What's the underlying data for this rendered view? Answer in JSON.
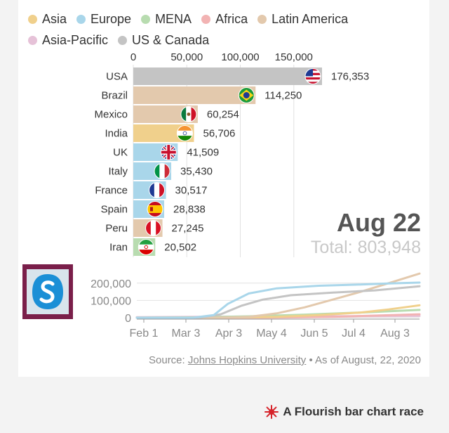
{
  "legend": [
    {
      "label": "Asia",
      "color": "#f0d08c"
    },
    {
      "label": "Europe",
      "color": "#a9d6ea"
    },
    {
      "label": "MENA",
      "color": "#b8dcb0"
    },
    {
      "label": "Africa",
      "color": "#f2b3b3"
    },
    {
      "label": "Latin America",
      "color": "#e3c9ad"
    },
    {
      "label": "Asia-Pacific",
      "color": "#e6c2d8"
    },
    {
      "label": "US & Canada",
      "color": "#c4c4c4"
    }
  ],
  "date": "Aug 22",
  "total": "Total: 803,948",
  "source": {
    "prefix": "Source: ",
    "link": "Johns Hopkins University",
    "suffix": " • As of August, 22, 2020"
  },
  "footer": "A Flourish bar chart race",
  "chart_data": [
    {
      "type": "bar",
      "orientation": "horizontal",
      "categories": [
        "USA",
        "Brazil",
        "Mexico",
        "India",
        "UK",
        "Italy",
        "France",
        "Spain",
        "Peru",
        "Iran"
      ],
      "values": [
        176353,
        114250,
        60254,
        56706,
        41509,
        35430,
        30517,
        28838,
        27245,
        20502
      ],
      "value_labels": [
        "176,353",
        "114,250",
        "60,254",
        "56,706",
        "41,509",
        "35,430",
        "30,517",
        "28,838",
        "27,245",
        "20,502"
      ],
      "regions": [
        "US & Canada",
        "Latin America",
        "Latin America",
        "Asia",
        "Europe",
        "Europe",
        "Europe",
        "Europe",
        "Latin America",
        "MENA"
      ],
      "flags": [
        "us-flag-icon",
        "brazil-flag-icon",
        "mexico-flag-icon",
        "india-flag-icon",
        "uk-flag-icon",
        "italy-flag-icon",
        "france-flag-icon",
        "spain-flag-icon",
        "peru-flag-icon",
        "iran-flag-icon"
      ],
      "x_ticks": [
        0,
        50000,
        100000,
        150000
      ],
      "x_tick_labels": [
        "0",
        "50,000",
        "100,000",
        "150,000"
      ],
      "xlim": [
        0,
        176353
      ],
      "grid": true
    },
    {
      "type": "line",
      "x_tick_labels": [
        "Feb 1",
        "Mar 3",
        "Apr 3",
        "May 4",
        "Jun 5",
        "Jul 4",
        "Aug 3"
      ],
      "y_tick_labels": [
        "200,000",
        "100,000",
        "0"
      ],
      "y_ticks": [
        200000,
        100000,
        0
      ],
      "ylim": [
        0,
        260000
      ],
      "series": [
        {
          "region": "Europe",
          "color": "#a9d6ea",
          "x": [
            0,
            40,
            55,
            65,
            80,
            100,
            130,
            160,
            180,
            202
          ],
          "y": [
            0,
            0,
            15000,
            80000,
            140000,
            170000,
            185000,
            192000,
            198000,
            203000
          ]
        },
        {
          "region": "US & Canada",
          "color": "#c4c4c4",
          "x": [
            0,
            45,
            60,
            75,
            90,
            110,
            140,
            170,
            202
          ],
          "y": [
            0,
            0,
            20000,
            70000,
            105000,
            130000,
            145000,
            158000,
            182000
          ]
        },
        {
          "region": "Latin America",
          "color": "#e3c9ad",
          "x": [
            0,
            60,
            80,
            100,
            120,
            140,
            160,
            180,
            202
          ],
          "y": [
            0,
            0,
            5000,
            25000,
            60000,
            105000,
            150000,
            200000,
            255000
          ]
        },
        {
          "region": "Asia",
          "color": "#f0d08c",
          "x": [
            0,
            60,
            100,
            130,
            160,
            180,
            202
          ],
          "y": [
            0,
            500,
            5000,
            15000,
            30000,
            48000,
            72000
          ]
        },
        {
          "region": "MENA",
          "color": "#b8dcb0",
          "x": [
            0,
            45,
            80,
            120,
            160,
            202
          ],
          "y": [
            500,
            2000,
            8000,
            18000,
            30000,
            45000
          ]
        },
        {
          "region": "Africa",
          "color": "#f2b3b3",
          "x": [
            0,
            100,
            140,
            170,
            202
          ],
          "y": [
            0,
            1000,
            5000,
            12000,
            20000
          ]
        },
        {
          "region": "Asia-Pacific",
          "color": "#e6c2d8",
          "x": [
            0,
            20,
            60,
            120,
            202
          ],
          "y": [
            3000,
            4000,
            6000,
            8000,
            10000
          ]
        }
      ],
      "xlim": [
        0,
        202
      ],
      "grid": true
    }
  ]
}
